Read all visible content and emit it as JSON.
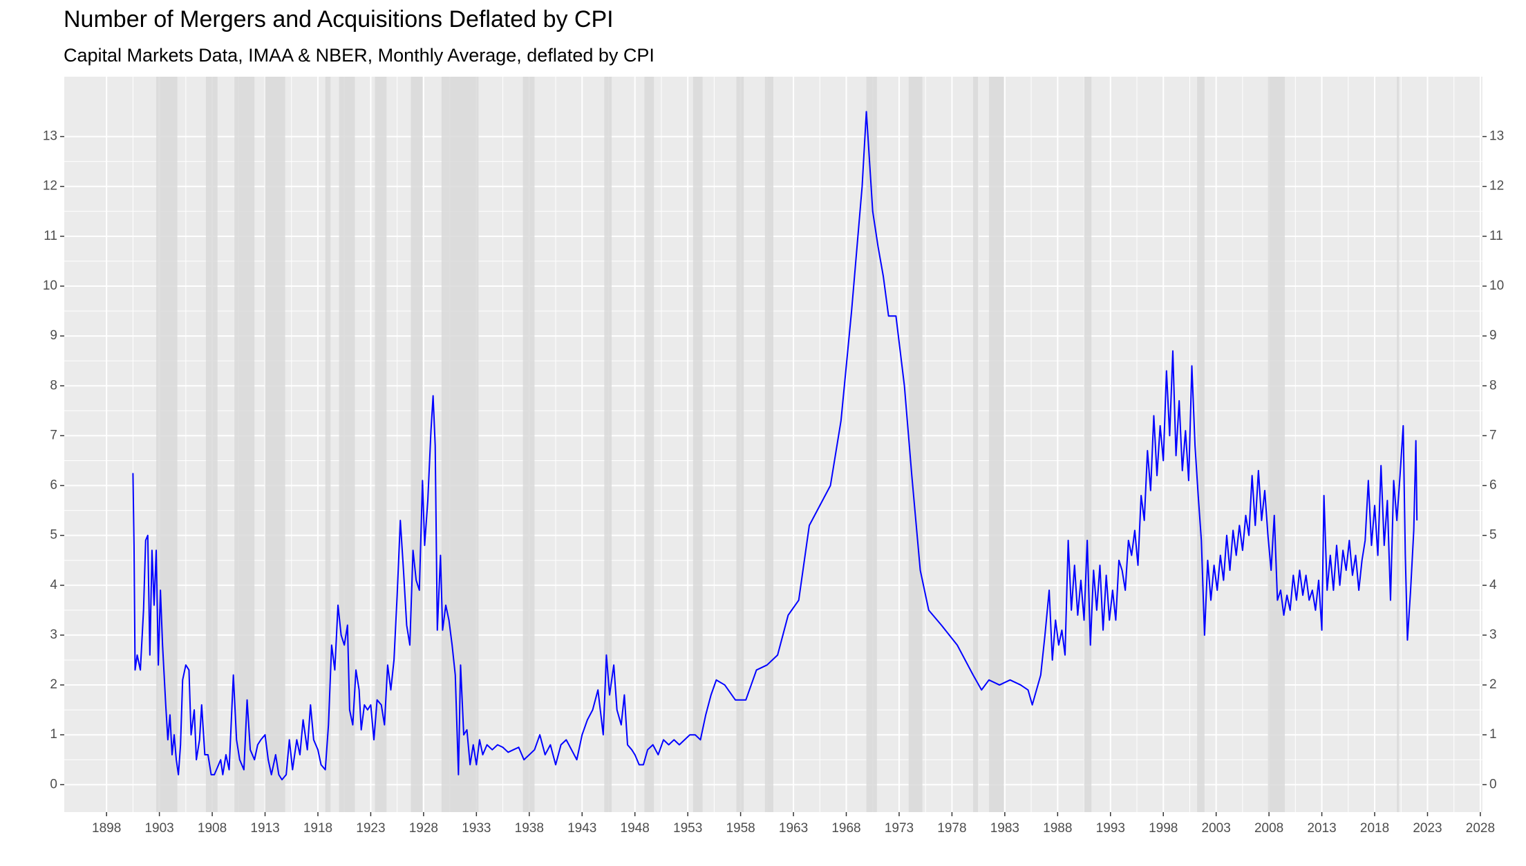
{
  "chart_data": {
    "type": "line",
    "title": "Number of Mergers and Acquisitions Deflated by CPI",
    "subtitle": "Capital Markets Data, IMAA & NBER, Monthly Average, deflated by CPI",
    "color": "#0000ff",
    "shade_color": "#d9d9d9",
    "grid": true,
    "xlim": [
      1894,
      2028.2
    ],
    "ylim": [
      -0.55,
      14.2
    ],
    "xticks": [
      1898,
      1903,
      1908,
      1913,
      1918,
      1923,
      1928,
      1933,
      1938,
      1943,
      1948,
      1953,
      1958,
      1963,
      1968,
      1973,
      1978,
      1983,
      1988,
      1993,
      1998,
      2003,
      2008,
      2013,
      2018,
      2023,
      2028
    ],
    "yticks": [
      0,
      1,
      2,
      3,
      4,
      5,
      6,
      7,
      8,
      9,
      10,
      11,
      12,
      13
    ],
    "y2ticks": [
      0,
      1,
      2,
      3,
      4,
      5,
      6,
      7,
      8,
      9,
      10,
      11,
      12,
      13
    ],
    "shaded_periods": [
      [
        1902.7,
        1904.7
      ],
      [
        1907.4,
        1908.5
      ],
      [
        1910.1,
        1912.0
      ],
      [
        1913.0,
        1914.9
      ],
      [
        1918.7,
        1919.2
      ],
      [
        1920.0,
        1921.5
      ],
      [
        1923.4,
        1924.5
      ],
      [
        1926.8,
        1927.9
      ],
      [
        1929.7,
        1933.2
      ],
      [
        1937.4,
        1938.5
      ],
      [
        1945.1,
        1945.8
      ],
      [
        1948.9,
        1949.8
      ],
      [
        1953.5,
        1954.4
      ],
      [
        1957.6,
        1958.3
      ],
      [
        1960.3,
        1961.1
      ],
      [
        1969.9,
        1970.9
      ],
      [
        1973.9,
        1975.2
      ],
      [
        1980.0,
        1980.5
      ],
      [
        1981.5,
        1982.9
      ],
      [
        1990.5,
        1991.2
      ],
      [
        2001.2,
        2001.9
      ],
      [
        2007.9,
        2009.5
      ],
      [
        2020.1,
        2020.3
      ]
    ],
    "x": [
      1900.5,
      1900.6,
      1900.7,
      1900.9,
      1901.2,
      1901.5,
      1901.7,
      1901.9,
      1902.1,
      1902.3,
      1902.5,
      1902.7,
      1902.9,
      1903.1,
      1903.3,
      1903.6,
      1903.8,
      1904.0,
      1904.2,
      1904.4,
      1904.6,
      1904.8,
      1905.0,
      1905.2,
      1905.5,
      1905.8,
      1906.0,
      1906.3,
      1906.5,
      1906.8,
      1907.0,
      1907.3,
      1907.6,
      1907.9,
      1908.2,
      1908.5,
      1908.8,
      1909.0,
      1909.3,
      1909.6,
      1910.0,
      1910.3,
      1910.6,
      1911.0,
      1911.3,
      1911.6,
      1912.0,
      1912.3,
      1912.6,
      1913.0,
      1913.3,
      1913.6,
      1914.0,
      1914.3,
      1914.6,
      1915.0,
      1915.3,
      1915.6,
      1916.0,
      1916.3,
      1916.6,
      1917.0,
      1917.3,
      1917.6,
      1918.0,
      1918.3,
      1918.7,
      1919.0,
      1919.3,
      1919.6,
      1919.9,
      1920.2,
      1920.5,
      1920.8,
      1921.0,
      1921.3,
      1921.6,
      1921.9,
      1922.1,
      1922.4,
      1922.7,
      1923.0,
      1923.3,
      1923.6,
      1924.0,
      1924.3,
      1924.6,
      1924.9,
      1925.2,
      1925.5,
      1925.8,
      1926.1,
      1926.4,
      1926.7,
      1927.0,
      1927.3,
      1927.6,
      1927.9,
      1928.1,
      1928.4,
      1928.7,
      1928.9,
      1929.1,
      1929.3,
      1929.6,
      1929.8,
      1930.1,
      1930.4,
      1930.7,
      1931.0,
      1931.3,
      1931.5,
      1931.8,
      1932.1,
      1932.4,
      1932.7,
      1933.0,
      1933.3,
      1933.6,
      1934.0,
      1934.5,
      1935.0,
      1935.5,
      1936.0,
      1936.5,
      1937.0,
      1937.5,
      1938.0,
      1938.5,
      1939.0,
      1939.5,
      1940.0,
      1940.5,
      1941.0,
      1941.5,
      1942.0,
      1942.5,
      1943.0,
      1943.5,
      1944.0,
      1944.5,
      1945.0,
      1945.3,
      1945.6,
      1946.0,
      1946.3,
      1946.7,
      1947.0,
      1947.3,
      1947.7,
      1948.0,
      1948.4,
      1948.8,
      1949.2,
      1949.7,
      1950.2,
      1950.7,
      1951.2,
      1951.7,
      1952.2,
      1952.7,
      1953.2,
      1953.7,
      1954.2,
      1954.7,
      1955.2,
      1955.7,
      1956.5,
      1957.5,
      1958.5,
      1959.5,
      1960.5,
      1961.5,
      1962.5,
      1963.5,
      1964.5,
      1965.5,
      1966.5,
      1967.5,
      1968.5,
      1969.5,
      1969.9,
      1970.5,
      1971.0,
      1971.5,
      1972.0,
      1972.7,
      1973.5,
      1974.2,
      1975.0,
      1975.8,
      1977.0,
      1978.5,
      1980.0,
      1980.8,
      1981.5,
      1982.5,
      1983.5,
      1984.5,
      1985.2,
      1985.6,
      1986.0,
      1986.4,
      1986.8,
      1987.2,
      1987.5,
      1987.8,
      1988.1,
      1988.4,
      1988.7,
      1989.0,
      1989.3,
      1989.6,
      1989.9,
      1990.2,
      1990.5,
      1990.8,
      1991.1,
      1991.4,
      1991.7,
      1992.0,
      1992.3,
      1992.6,
      1992.9,
      1993.2,
      1993.5,
      1993.8,
      1994.1,
      1994.4,
      1994.7,
      1995.0,
      1995.3,
      1995.6,
      1995.9,
      1996.2,
      1996.5,
      1996.8,
      1997.1,
      1997.4,
      1997.7,
      1998.0,
      1998.3,
      1998.6,
      1998.9,
      1999.2,
      1999.5,
      1999.8,
      2000.1,
      2000.4,
      2000.7,
      2001.0,
      2001.3,
      2001.6,
      2001.9,
      2002.2,
      2002.5,
      2002.8,
      2003.1,
      2003.4,
      2003.7,
      2004.0,
      2004.3,
      2004.6,
      2004.9,
      2005.2,
      2005.5,
      2005.8,
      2006.1,
      2006.4,
      2006.7,
      2007.0,
      2007.3,
      2007.6,
      2007.9,
      2008.2,
      2008.5,
      2008.8,
      2009.1,
      2009.4,
      2009.7,
      2010.0,
      2010.3,
      2010.6,
      2010.9,
      2011.2,
      2011.5,
      2011.8,
      2012.1,
      2012.4,
      2012.7,
      2013.0,
      2013.2,
      2013.5,
      2013.8,
      2014.1,
      2014.4,
      2014.7,
      2015.0,
      2015.3,
      2015.6,
      2015.9,
      2016.2,
      2016.5,
      2016.8,
      2017.1,
      2017.4,
      2017.7,
      2018.0,
      2018.3,
      2018.6,
      2018.9,
      2019.2,
      2019.5,
      2019.8,
      2020.1,
      2020.4,
      2020.7,
      2020.9,
      2021.1,
      2021.4,
      2021.7,
      2021.9,
      2022.0
    ],
    "values": [
      6.25,
      4.8,
      2.3,
      2.6,
      2.3,
      3.5,
      4.9,
      5.0,
      2.6,
      4.7,
      3.6,
      4.7,
      2.4,
      3.9,
      2.8,
      1.6,
      0.9,
      1.4,
      0.6,
      1.0,
      0.5,
      0.2,
      0.8,
      2.1,
      2.4,
      2.3,
      1.0,
      1.5,
      0.5,
      0.9,
      1.6,
      0.6,
      0.6,
      0.2,
      0.2,
      0.35,
      0.5,
      0.2,
      0.6,
      0.3,
      2.2,
      0.9,
      0.5,
      0.3,
      1.7,
      0.7,
      0.5,
      0.8,
      0.9,
      1.0,
      0.5,
      0.2,
      0.6,
      0.2,
      0.1,
      0.2,
      0.9,
      0.3,
      0.9,
      0.6,
      1.3,
      0.7,
      1.6,
      0.9,
      0.7,
      0.4,
      0.3,
      1.2,
      2.8,
      2.3,
      3.6,
      3.0,
      2.8,
      3.2,
      1.5,
      1.2,
      2.3,
      1.9,
      1.1,
      1.6,
      1.5,
      1.6,
      0.9,
      1.7,
      1.6,
      1.2,
      2.4,
      1.9,
      2.5,
      3.8,
      5.3,
      4.3,
      3.2,
      2.8,
      4.7,
      4.1,
      3.9,
      6.1,
      4.8,
      5.7,
      7.1,
      7.8,
      6.8,
      3.1,
      4.6,
      3.1,
      3.6,
      3.3,
      2.8,
      2.2,
      0.2,
      2.4,
      1.0,
      1.1,
      0.4,
      0.8,
      0.4,
      0.9,
      0.6,
      0.8,
      0.7,
      0.8,
      0.75,
      0.65,
      0.7,
      0.75,
      0.5,
      0.6,
      0.7,
      1.0,
      0.6,
      0.8,
      0.4,
      0.8,
      0.9,
      0.7,
      0.5,
      1.0,
      1.3,
      1.5,
      1.9,
      1.0,
      2.6,
      1.8,
      2.4,
      1.5,
      1.2,
      1.8,
      0.8,
      0.7,
      0.6,
      0.4,
      0.4,
      0.7,
      0.8,
      0.6,
      0.9,
      0.8,
      0.9,
      0.8,
      0.9,
      1.0,
      1.0,
      0.9,
      1.4,
      1.8,
      2.1,
      2.0,
      1.7,
      1.7,
      2.3,
      2.4,
      2.6,
      3.4,
      3.7,
      5.2,
      5.6,
      6.0,
      7.3,
      9.5,
      12.0,
      13.5,
      11.5,
      10.8,
      10.2,
      9.4,
      9.4,
      8.0,
      6.2,
      4.3,
      3.5,
      3.2,
      2.8,
      2.2,
      1.9,
      2.1,
      2.0,
      2.1,
      2.0,
      1.9,
      1.6,
      1.9,
      2.2,
      3.0,
      3.9,
      2.5,
      3.3,
      2.8,
      3.1,
      2.6,
      4.9,
      3.5,
      4.4,
      3.4,
      4.1,
      3.3,
      4.9,
      2.8,
      4.3,
      3.5,
      4.4,
      3.1,
      4.2,
      3.3,
      3.9,
      3.3,
      4.5,
      4.3,
      3.9,
      4.9,
      4.6,
      5.1,
      4.4,
      5.8,
      5.3,
      6.7,
      5.9,
      7.4,
      6.2,
      7.2,
      6.5,
      8.3,
      7.0,
      8.7,
      6.6,
      7.7,
      6.3,
      7.1,
      6.1,
      8.4,
      6.8,
      5.8,
      4.9,
      3.0,
      4.5,
      3.7,
      4.4,
      3.9,
      4.6,
      4.1,
      5.0,
      4.3,
      5.1,
      4.6,
      5.2,
      4.7,
      5.4,
      5.0,
      6.2,
      5.2,
      6.3,
      5.3,
      5.9,
      5.0,
      4.3,
      5.4,
      3.7,
      3.9,
      3.4,
      3.8,
      3.5,
      4.2,
      3.7,
      4.3,
      3.8,
      4.2,
      3.7,
      3.9,
      3.5,
      4.1,
      3.1,
      5.8,
      3.9,
      4.6,
      3.9,
      4.8,
      4.0,
      4.7,
      4.3,
      4.9,
      4.2,
      4.6,
      3.9,
      4.5,
      4.9,
      6.1,
      4.8,
      5.6,
      4.6,
      6.4,
      4.8,
      5.7,
      3.7,
      6.1,
      5.3,
      6.2,
      7.2,
      4.6,
      2.9,
      3.9,
      5.1,
      6.9,
      5.3
    ]
  }
}
